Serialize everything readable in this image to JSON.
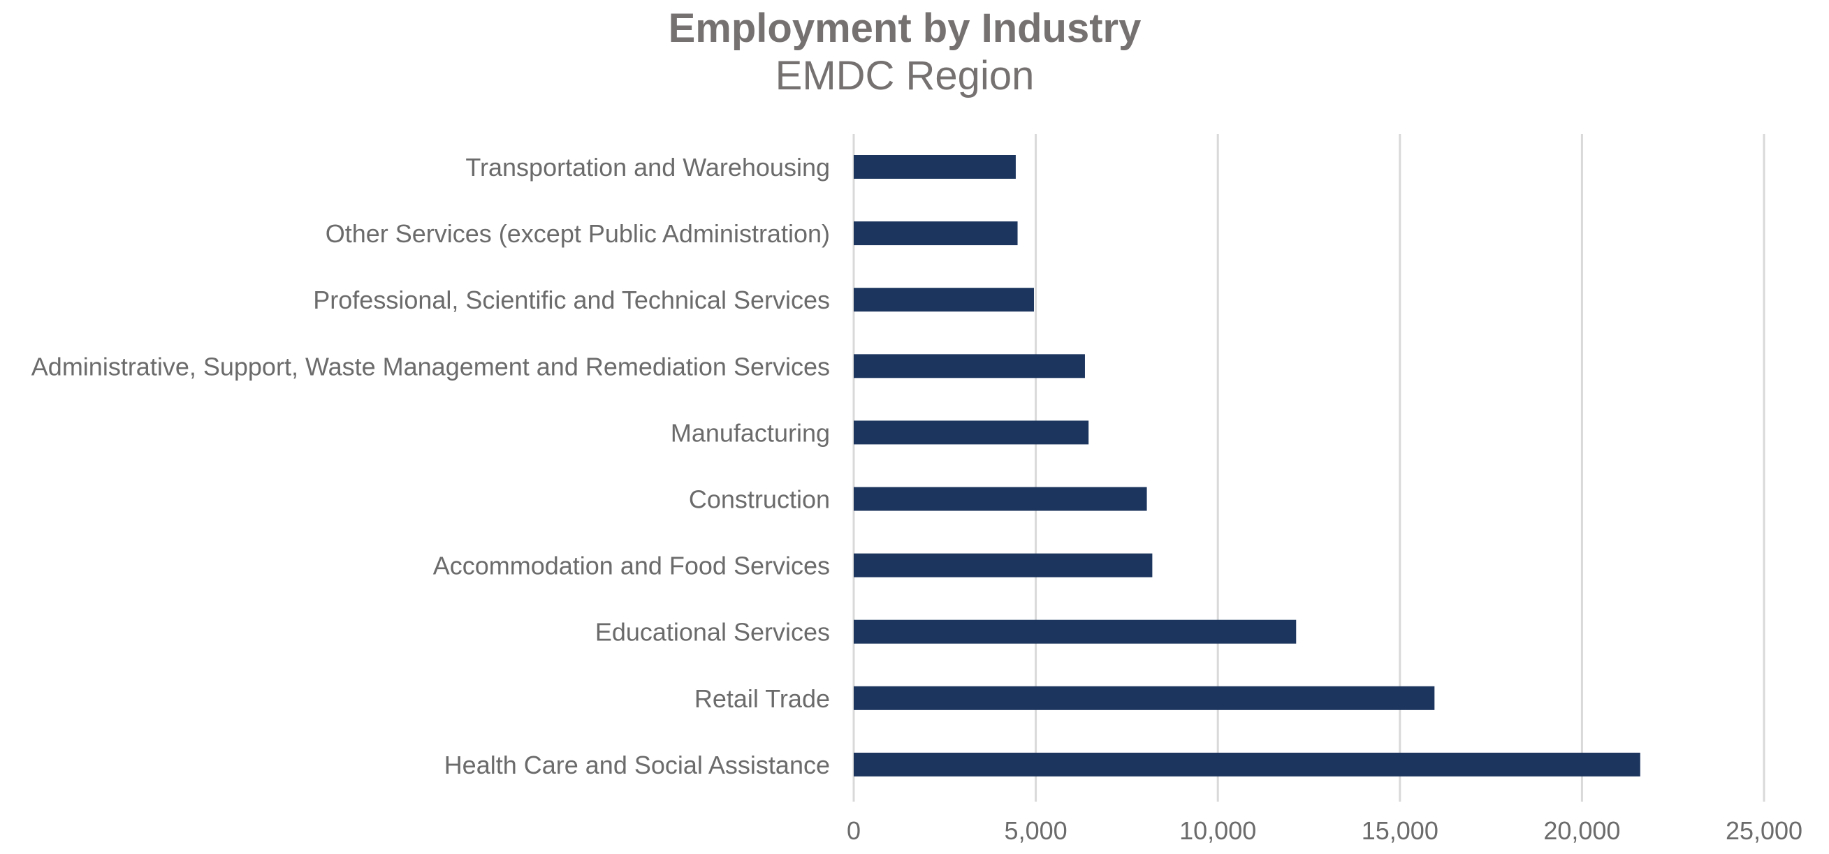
{
  "chart_data": {
    "type": "bar",
    "orientation": "horizontal",
    "title": "Employment by Industry",
    "subtitle": "EMDC Region",
    "xlabel": "",
    "ylabel": "",
    "xlim": [
      0,
      25000
    ],
    "x_ticks": [
      0,
      5000,
      10000,
      15000,
      20000,
      25000
    ],
    "x_tick_labels": [
      "0",
      "5,000",
      "10,000",
      "15,000",
      "20,000",
      "25,000"
    ],
    "grid": true,
    "legend": "none",
    "bar_color": "#1c355e",
    "categories": [
      "Transportation and Warehousing",
      "Other Services (except Public Administration)",
      "Professional, Scientific and Technical Services",
      "Administrative, Support, Waste Management and Remediation Services",
      "Manufacturing",
      "Construction",
      "Accommodation and Food Services",
      "Educational Services",
      "Retail Trade",
      "Health Care and Social Assistance"
    ],
    "values": [
      4450,
      4500,
      4950,
      6350,
      6450,
      8050,
      8200,
      12150,
      15950,
      21600
    ]
  }
}
